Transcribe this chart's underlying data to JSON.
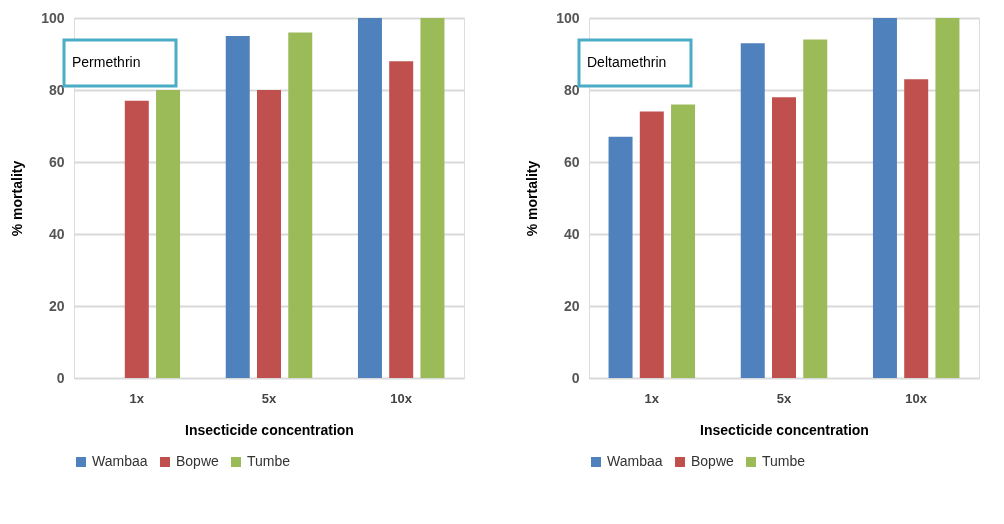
{
  "chart_data": [
    {
      "type": "bar",
      "title": "Permethrin",
      "xlabel": "Insecticide concentration",
      "ylabel": "% mortality",
      "categories": [
        "1x",
        "5x",
        "10x"
      ],
      "series": [
        {
          "name": "Wambaa",
          "color": "#4f81bd",
          "values": [
            null,
            95,
            100
          ]
        },
        {
          "name": "Bopwe",
          "color": "#c0504d",
          "values": [
            77,
            80,
            88
          ]
        },
        {
          "name": "Tumbe",
          "color": "#9bbb59",
          "values": [
            80,
            96,
            100
          ]
        }
      ],
      "ylim": [
        0,
        100
      ],
      "yticks": [
        0,
        20,
        40,
        60,
        80,
        100
      ],
      "grid": "y",
      "legend": "bottom"
    },
    {
      "type": "bar",
      "title": "Deltamethrin",
      "xlabel": "Insecticide concentration",
      "ylabel": "% mortality",
      "categories": [
        "1x",
        "5x",
        "10x"
      ],
      "series": [
        {
          "name": "Wambaa",
          "color": "#4f81bd",
          "values": [
            67,
            93,
            100
          ]
        },
        {
          "name": "Bopwe",
          "color": "#c0504d",
          "values": [
            74,
            78,
            83
          ]
        },
        {
          "name": "Tumbe",
          "color": "#9bbb59",
          "values": [
            76,
            94,
            100
          ]
        }
      ],
      "ylim": [
        0,
        100
      ],
      "yticks": [
        0,
        20,
        40,
        60,
        80,
        100
      ],
      "grid": "y",
      "legend": "bottom"
    }
  ]
}
